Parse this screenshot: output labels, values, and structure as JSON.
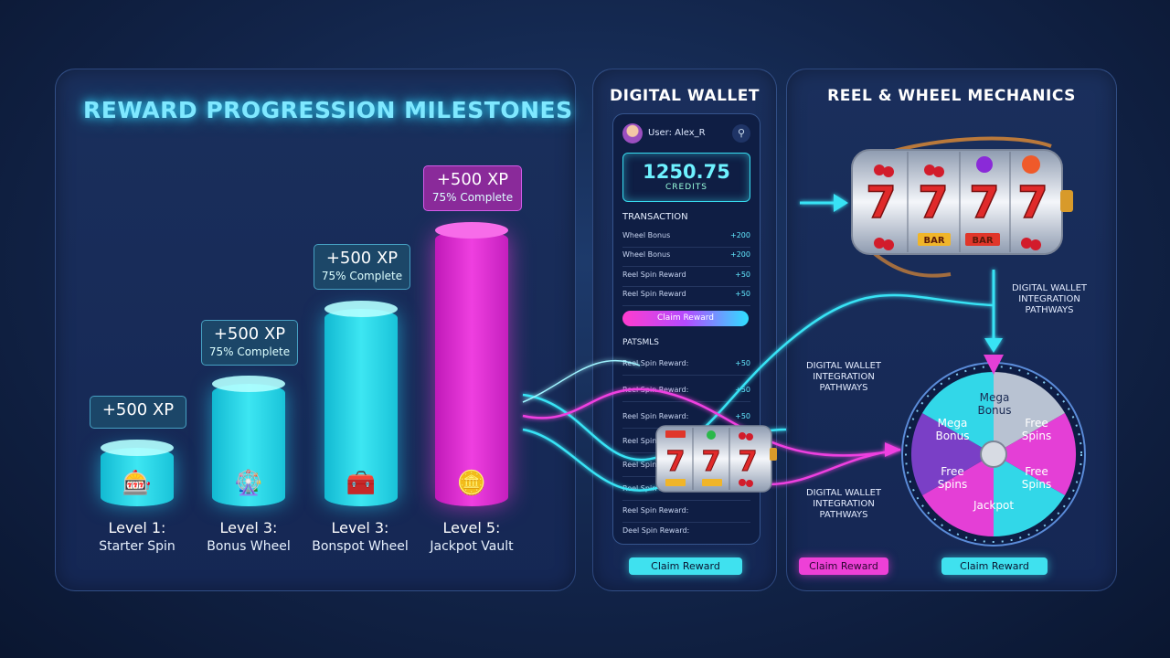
{
  "colors": {
    "cyan": "#3de6f2",
    "magenta": "#ef3fe0",
    "purple": "#7a3fc6",
    "background": "#122449"
  },
  "milestones": {
    "title": "REWARD PROGRESSION MILESTONES",
    "items": [
      {
        "xp": "+500 XP",
        "progress_text": "",
        "level": "Level 1:",
        "name": "Starter Spin",
        "icon": "slot-machine-icon",
        "color": "cyan"
      },
      {
        "xp": "+500 XP",
        "progress_text": "75% Complete",
        "level": "Level 3:",
        "name": "Bonus Wheel",
        "icon": "wheel-icon",
        "color": "cyan"
      },
      {
        "xp": "+500 XP",
        "progress_text": "75% Complete",
        "level": "Level 3:",
        "name": "Bonspot Wheel",
        "icon": "treasure-chest-icon",
        "color": "cyan"
      },
      {
        "xp": "+500 XP",
        "progress_text": "75% Complete",
        "level": "Level 5:",
        "name": "Jackpot Vault",
        "icon": "coin-stack-icon",
        "color": "magenta"
      }
    ]
  },
  "wallet": {
    "title": "DIGITAL WALLET",
    "user": "User: Alex_R",
    "balance": "1250.75",
    "balance_unit": "CREDITS",
    "transaction_header": "TRANSACTION",
    "transactions": [
      {
        "label": "Wheel Bonus",
        "amount": "+200"
      },
      {
        "label": "Wheel Bonus",
        "amount": "+200"
      },
      {
        "label": "Reel Spin Reward",
        "amount": "+50"
      },
      {
        "label": "Reel Spin Reward",
        "amount": "+50"
      }
    ],
    "claim_label": "Claim Reward",
    "second_header": "PATSMLS",
    "second_rows": [
      {
        "label": "Reel Spin Reward:",
        "amount": "+50"
      },
      {
        "label": "Reel Spin Reward:",
        "amount": "+50"
      },
      {
        "label": "Reel Spin Reward:",
        "amount": "+50"
      },
      {
        "label": "Reel Spin Reward:",
        "amount": ""
      },
      {
        "label": "Reel Spin Reward:",
        "amount": ""
      },
      {
        "label": "Reel Spin Reward:",
        "amount": ""
      },
      {
        "label": "Reel Spin Reward:",
        "amount": ""
      },
      {
        "label": "Deel Spin Reward:",
        "amount": ""
      }
    ],
    "bottom_claim_label": "Claim Reward"
  },
  "mechanics": {
    "title": "REEL & WHEEL MECHANICS",
    "reel_symbols": [
      "7",
      "7",
      "7",
      "7"
    ],
    "reel_tags": [
      "BAR",
      "BAR"
    ],
    "mini_reel_symbols": [
      "7",
      "7",
      "7"
    ],
    "pathway_labels": [
      "DIGITAL WALLET INTEGRATION PATHWAYS",
      "DIGITAL WALLET INTEGRATION PATHWAYS",
      "DIGITAL WALLET INTEGRATION PATHWAYS"
    ],
    "wheel_segments": [
      "Mega Bonus",
      "Free Spins",
      "Free Spins",
      "Jackpot",
      "Free Spins",
      "Mega Bonus"
    ],
    "claim_left": "Claim Reward",
    "claim_right": "Claim Reward"
  }
}
